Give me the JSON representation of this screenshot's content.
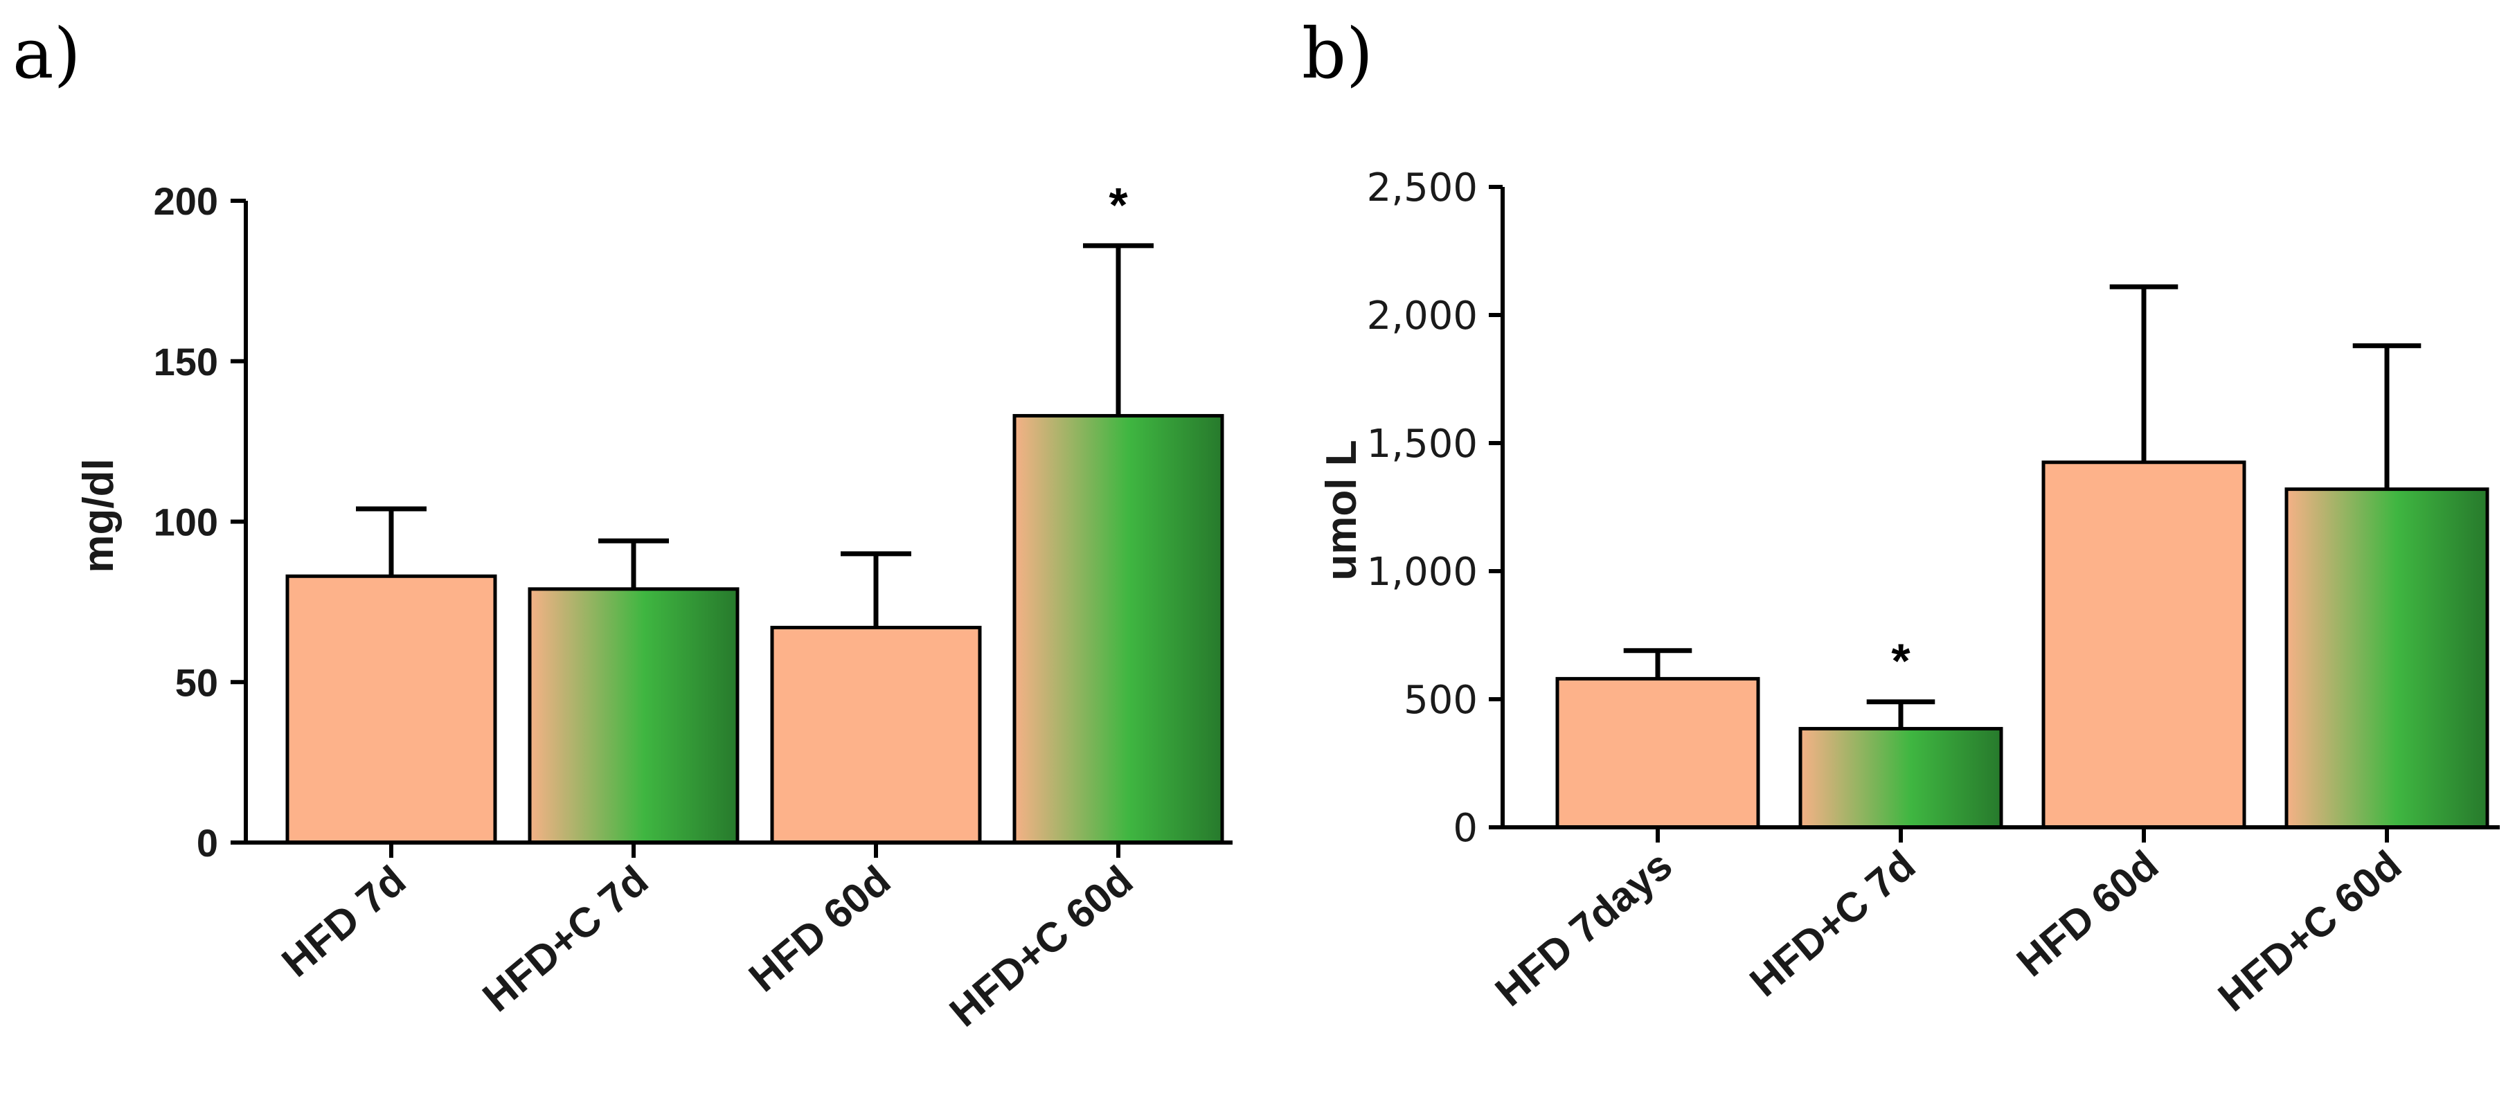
{
  "chart_data": [
    {
      "panel_label": "a)",
      "type": "bar",
      "ylabel": "mg/dl",
      "ylim": [
        0,
        200
      ],
      "yticks": [
        0,
        50,
        100,
        150,
        200
      ],
      "ytick_labels": [
        "0",
        "50",
        "100",
        "150",
        "200"
      ],
      "categories": [
        "HFD 7d",
        "HFD+C 7d",
        "HFD 60d",
        "HFD+C 60d"
      ],
      "values": [
        83,
        79,
        67,
        133
      ],
      "errors": [
        21,
        15,
        23,
        53
      ],
      "fills": [
        "salmon",
        "gradient",
        "salmon",
        "gradient"
      ],
      "significance": [
        "",
        "",
        "",
        "*"
      ]
    },
    {
      "panel_label": "b)",
      "type": "bar",
      "ylabel": "umol L",
      "ylim": [
        0,
        2500
      ],
      "yticks": [
        0,
        500,
        1000,
        1500,
        2000,
        2500
      ],
      "ytick_labels": [
        "0",
        "500",
        "1,000",
        "1,500",
        "2,000",
        "2,500"
      ],
      "categories": [
        "HFD 7days",
        "HFD+C 7d",
        "HFD 60d",
        "HFD+C 60d"
      ],
      "values": [
        580,
        385,
        1425,
        1320
      ],
      "errors": [
        110,
        105,
        685,
        560
      ],
      "fills": [
        "salmon",
        "gradient",
        "salmon",
        "gradient"
      ],
      "significance": [
        "",
        "*",
        "",
        ""
      ]
    }
  ],
  "colors": {
    "salmon": "#FDB28A",
    "gradient_start": "#F5B187",
    "gradient_mid": "#3FB641",
    "gradient_end": "#277A2C",
    "axis": "#000000"
  }
}
